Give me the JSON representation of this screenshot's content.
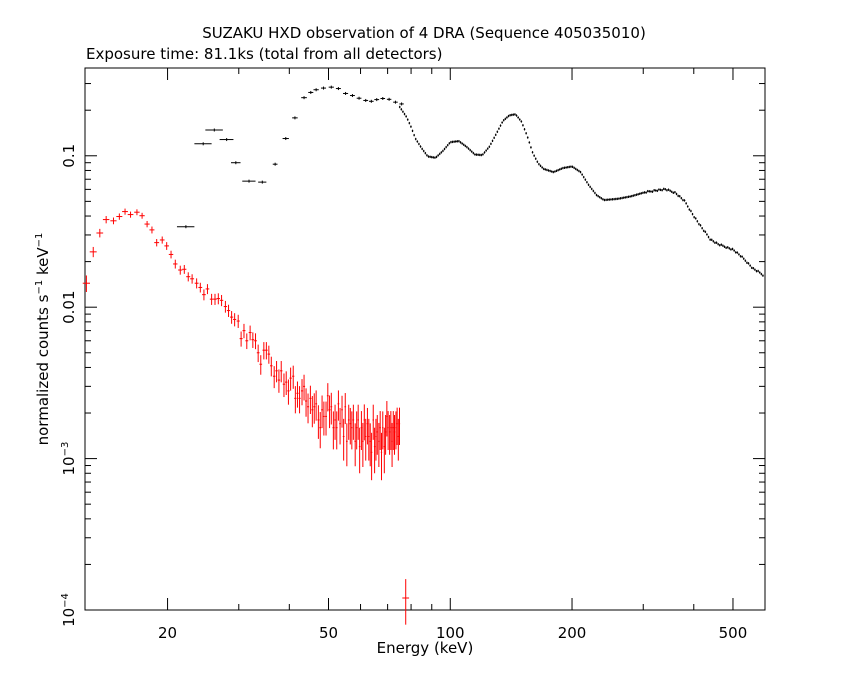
{
  "chart_data": {
    "type": "scatter",
    "title": "SUZAKU HXD observation of 4 DRA (Sequence 405035010)",
    "subtitle": "Exposure time: 81.1ks (total from all detectors)",
    "xlabel": "Energy (keV)",
    "ylabel": {
      "prefix": "normalized counts s",
      "exp1": "−1",
      "mid": " keV",
      "exp2": "−1"
    },
    "x_scale": "log",
    "y_scale": "log",
    "xlim": [
      12.5,
      600
    ],
    "ylim": [
      0.0001,
      0.38
    ],
    "x_ticks": [
      {
        "value": 20,
        "label": "20"
      },
      {
        "value": 50,
        "label": "50"
      },
      {
        "value": 100,
        "label": "100"
      },
      {
        "value": 200,
        "label": "200"
      },
      {
        "value": 500,
        "label": "500"
      }
    ],
    "y_ticks": [
      {
        "value": 0.0001,
        "base": "10",
        "exp": "−4"
      },
      {
        "value": 0.001,
        "base": "10",
        "exp": "−3"
      },
      {
        "value": 0.01,
        "label": "0.01"
      },
      {
        "value": 0.1,
        "label": "0.1"
      }
    ],
    "series": [
      {
        "color": "#ff0000",
        "x": [
          12.6,
          13.1,
          13.6,
          14.1,
          14.7,
          15.2,
          15.7,
          16.2,
          16.8,
          17.3,
          17.8,
          18.3,
          18.8,
          19.4,
          19.9,
          20.4,
          20.9,
          21.5,
          22.0,
          22.5,
          23.0,
          23.6,
          24.1,
          24.6,
          25.1,
          25.7,
          26.2,
          26.7,
          27.2,
          27.8,
          28.3,
          28.8,
          29.3,
          29.9,
          30.4,
          30.9,
          31.4,
          32.0,
          32.5,
          33.0,
          33.5,
          34.0,
          34.6,
          35.1,
          35.6,
          36.1,
          36.7,
          37.2,
          37.7,
          38.2,
          38.8,
          39.3,
          39.8,
          40.3,
          40.9,
          41.4,
          41.9,
          42.4,
          43.0,
          43.5,
          44.0,
          44.5,
          45.1,
          45.6,
          46.1,
          46.6,
          47.2,
          47.7,
          48.2,
          48.7,
          49.3,
          49.8,
          50.3,
          50.8,
          51.4,
          51.9,
          52.4,
          52.9,
          53.4,
          54.0,
          54.5,
          55.0,
          55.5,
          56.1,
          56.6,
          57.1,
          57.6,
          58.2,
          58.7,
          59.2,
          59.7,
          60.3,
          60.8,
          61.3,
          61.8,
          62.4,
          62.9,
          63.4,
          63.9,
          64.5,
          65.0,
          65.5,
          66.0,
          66.6,
          67.1,
          67.6,
          68.1,
          68.7,
          69.2,
          69.7,
          70.2,
          70.8,
          71.3,
          71.8,
          72.3,
          72.8,
          73.4,
          73.9,
          74.4,
          74.9,
          77.6
        ],
        "y": [
          0.0144,
          0.0232,
          0.0309,
          0.0379,
          0.0372,
          0.0397,
          0.0428,
          0.0409,
          0.0424,
          0.0402,
          0.0354,
          0.0324,
          0.0267,
          0.0278,
          0.0254,
          0.0223,
          0.0193,
          0.0176,
          0.0178,
          0.0159,
          0.0154,
          0.0144,
          0.0135,
          0.0121,
          0.0132,
          0.0113,
          0.0113,
          0.0114,
          0.0111,
          0.0101,
          0.0095,
          0.0086,
          0.0083,
          0.0081,
          0.0062,
          0.007,
          0.006,
          0.0068,
          0.0061,
          0.006,
          0.005,
          0.0042,
          0.0052,
          0.0052,
          0.0049,
          0.0041,
          0.0035,
          0.0038,
          0.0033,
          0.0038,
          0.0031,
          0.0032,
          0.0028,
          0.0034,
          0.0035,
          0.0025,
          0.0027,
          0.0025,
          0.0028,
          0.003,
          0.0024,
          0.0022,
          0.0025,
          0.0021,
          0.0022,
          0.0023,
          0.0018,
          0.0016,
          0.0021,
          0.0019,
          0.0019,
          0.0026,
          0.0021,
          0.0022,
          0.0016,
          0.0018,
          0.0016,
          0.0023,
          0.0017,
          0.0021,
          0.0014,
          0.0022,
          0.0013,
          0.0018,
          0.0017,
          0.0016,
          0.0018,
          0.0013,
          0.0016,
          0.0018,
          0.0012,
          0.0016,
          0.0013,
          0.0018,
          0.0014,
          0.0017,
          0.0014,
          0.0013,
          0.0011,
          0.0018,
          0.0012,
          0.0014,
          0.0015,
          0.0013,
          0.0016,
          0.0011,
          0.0016,
          0.0012,
          0.0015,
          0.0019,
          0.0016,
          0.0015,
          0.0016,
          0.0013,
          0.0016,
          0.0015,
          0.0016,
          0.0017,
          0.0014,
          0.0017,
          0.00012
        ],
        "y_err": [
          0.0018,
          0.0018,
          0.002,
          0.0021,
          0.0019,
          0.0019,
          0.002,
          0.0019,
          0.0019,
          0.0018,
          0.0017,
          0.0017,
          0.0015,
          0.0015,
          0.0015,
          0.0013,
          0.0013,
          0.0012,
          0.0012,
          0.0011,
          0.0011,
          0.0011,
          0.001,
          0.001,
          0.001,
          0.00095,
          0.00095,
          0.00095,
          0.00094,
          0.0009,
          0.00088,
          0.00083,
          0.00083,
          0.00081,
          0.00071,
          0.00076,
          0.00071,
          0.00076,
          0.00072,
          0.00072,
          0.00066,
          0.00062,
          0.00068,
          0.00068,
          0.00067,
          0.00061,
          0.00058,
          0.00061,
          0.00058,
          0.00061,
          0.00055,
          0.00057,
          0.00053,
          0.00059,
          0.00061,
          0.00051,
          0.00053,
          0.00051,
          0.00055,
          0.00058,
          0.00051,
          0.00049,
          0.00053,
          0.00049,
          0.0005,
          0.00052,
          0.00045,
          0.00043,
          0.00051,
          0.00048,
          0.00048,
          0.00055,
          0.00051,
          0.00052,
          0.00045,
          0.00047,
          0.00045,
          0.00052,
          0.00046,
          0.0005,
          0.00043,
          0.00051,
          0.00041,
          0.00047,
          0.00046,
          0.00045,
          0.00047,
          0.00041,
          0.00045,
          0.00047,
          0.0004,
          0.00046,
          0.00042,
          0.00048,
          0.00043,
          0.00046,
          0.00043,
          0.00041,
          0.00038,
          0.00047,
          0.0004,
          0.00043,
          0.00044,
          0.00042,
          0.00046,
          0.00038,
          0.00045,
          0.0004,
          0.00044,
          0.0005,
          0.00046,
          0.00044,
          0.00046,
          0.00042,
          0.00046,
          0.00044,
          0.00045,
          0.00047,
          0.00043,
          0.00047,
          4e-05
        ],
        "x_err": [
          0.26,
          0.26,
          0.26,
          0.26,
          0.26,
          0.26,
          0.26,
          0.26,
          0.26,
          0.26,
          0.26,
          0.26,
          0.26,
          0.26,
          0.26,
          0.26,
          0.26,
          0.26,
          0.26,
          0.26,
          0.26,
          0.26,
          0.26,
          0.26,
          0.26,
          0.26,
          0.26,
          0.26,
          0.26,
          0.26,
          0.26,
          0.26,
          0.26,
          0.26,
          0.26,
          0.26,
          0.26,
          0.26,
          0.26,
          0.26,
          0.26,
          0.26,
          0.26,
          0.26,
          0.26,
          0.26,
          0.26,
          0.26,
          0.26,
          0.26,
          0.26,
          0.26,
          0.26,
          0.26,
          0.26,
          0.26,
          0.26,
          0.26,
          0.26,
          0.26,
          0.26,
          0.26,
          0.26,
          0.26,
          0.26,
          0.26,
          0.26,
          0.26,
          0.26,
          0.26,
          0.26,
          0.26,
          0.26,
          0.26,
          0.26,
          0.26,
          0.26,
          0.26,
          0.26,
          0.26,
          0.26,
          0.26,
          0.26,
          0.26,
          0.26,
          0.26,
          0.26,
          0.26,
          0.26,
          0.26,
          0.26,
          0.26,
          0.26,
          0.26,
          0.26,
          0.26,
          0.26,
          0.26,
          0.26,
          0.26,
          0.26,
          0.26,
          0.26,
          0.26,
          0.26,
          0.26,
          0.26,
          0.26,
          0.26,
          0.26,
          0.26,
          0.26,
          0.26,
          0.26,
          0.26,
          0.26,
          0.26,
          0.26,
          0.26,
          0.26,
          1.5
        ]
      },
      {
        "color": "#000000",
        "binned": {
          "x": [
            22.2,
            24.5,
            26.1,
            28.0,
            29.5,
            31.8,
            34.3,
            36.9,
            39.2,
            41.3,
            43.5,
            45.2,
            46.6,
            48.6,
            50.8,
            52.9,
            55.1,
            57.3,
            59.5,
            61.8,
            63.8,
            65.8,
            68.1,
            70.6,
            73.2,
            75.8
          ],
          "x_err": [
            1.1,
            1.2,
            1.3,
            1.1,
            0.8,
            1.2,
            0.8,
            0.5,
            0.7,
            0.65,
            0.7,
            0.65,
            0.7,
            0.7,
            0.75,
            0.75,
            0.8,
            0.8,
            0.8,
            0.85,
            0.85,
            0.9,
            0.9,
            0.9,
            0.95,
            0.95
          ],
          "y": [
            0.034,
            0.12,
            0.148,
            0.128,
            0.09,
            0.068,
            0.067,
            0.088,
            0.13,
            0.178,
            0.242,
            0.262,
            0.273,
            0.28,
            0.284,
            0.278,
            0.258,
            0.25,
            0.24,
            0.232,
            0.229,
            0.235,
            0.239,
            0.236,
            0.226,
            0.22
          ]
        },
        "curve": {
          "x": [
            75,
            78,
            80,
            82,
            85,
            88,
            92,
            96,
            100,
            105,
            110,
            115,
            120,
            125,
            130,
            135,
            140,
            145,
            150,
            155,
            160,
            165,
            170,
            180,
            190,
            200,
            210,
            220,
            230,
            240,
            260,
            280,
            300,
            320,
            340,
            360,
            380,
            400,
            420,
            440,
            460,
            480,
            500,
            520,
            540,
            560,
            580,
            600
          ],
          "y": [
            0.21,
            0.18,
            0.155,
            0.13,
            0.112,
            0.099,
            0.097,
            0.108,
            0.123,
            0.125,
            0.114,
            0.102,
            0.101,
            0.115,
            0.14,
            0.17,
            0.185,
            0.188,
            0.168,
            0.135,
            0.104,
            0.089,
            0.082,
            0.078,
            0.083,
            0.085,
            0.078,
            0.064,
            0.055,
            0.051,
            0.052,
            0.054,
            0.057,
            0.059,
            0.06,
            0.057,
            0.05,
            0.04,
            0.033,
            0.028,
            0.026,
            0.025,
            0.024,
            0.022,
            0.02,
            0.018,
            0.017,
            0.016
          ]
        }
      }
    ]
  }
}
